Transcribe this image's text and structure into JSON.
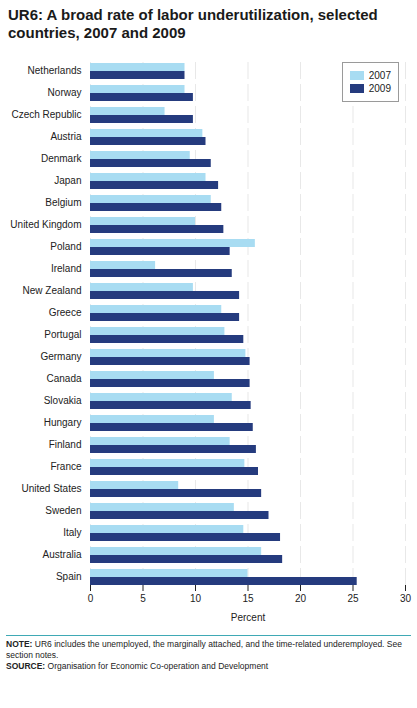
{
  "chart_data": {
    "type": "bar",
    "orientation": "horizontal",
    "title": "UR6: A broad rate of labor underutilization, selected countries, 2007 and 2009",
    "categories": [
      "Netherlands",
      "Norway",
      "Czech Republic",
      "Austria",
      "Denmark",
      "Japan",
      "Belgium",
      "United Kingdom",
      "Poland",
      "Ireland",
      "New Zealand",
      "Greece",
      "Portugal",
      "Germany",
      "Canada",
      "Slovakia",
      "Hungary",
      "Finland",
      "France",
      "United States",
      "Sweden",
      "Italy",
      "Australia",
      "Spain"
    ],
    "series": [
      {
        "name": "2007",
        "color": "#a8dcf2",
        "values": [
          9.0,
          9.0,
          7.1,
          10.7,
          9.5,
          11.0,
          11.5,
          10.0,
          15.7,
          6.2,
          9.8,
          12.5,
          12.8,
          14.8,
          11.8,
          13.5,
          11.8,
          13.3,
          14.7,
          8.4,
          13.7,
          14.6,
          16.3,
          15.0
        ]
      },
      {
        "name": "2009",
        "color": "#253b7e",
        "values": [
          9.0,
          9.8,
          9.8,
          11.0,
          11.5,
          12.2,
          12.5,
          12.7,
          13.3,
          13.5,
          14.2,
          14.2,
          14.6,
          15.2,
          15.2,
          15.3,
          15.5,
          15.8,
          16.0,
          16.3,
          17.0,
          18.1,
          18.3,
          25.4
        ]
      }
    ],
    "x_label": "Percent",
    "xlim": [
      0,
      30
    ],
    "xticks": [
      0,
      5,
      10,
      15,
      20,
      25,
      30
    ],
    "grid": true,
    "legend": "top-right",
    "note": "NOTE: UR6 includes the unemployed, the marginally attached, and the time-related underemployed. See section notes.",
    "source": "SOURCE: Organisation for Economic Co-operation and Development"
  }
}
